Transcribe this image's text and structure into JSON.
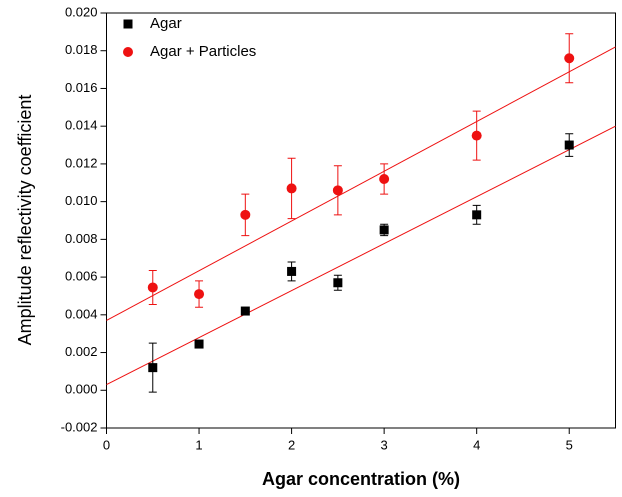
{
  "chart_data": {
    "type": "scatter",
    "x_label": "Agar concentration (%)",
    "y_label": "Amplitude reflectivity coefficient",
    "xlim": [
      0,
      5.5
    ],
    "ylim": [
      -0.002,
      0.02
    ],
    "xticks": [
      0,
      1,
      2,
      3,
      4,
      5
    ],
    "yticks": [
      {
        "value": -0.002,
        "label": "-0.002"
      },
      {
        "value": 0,
        "label": "0.000"
      },
      {
        "value": 0.002,
        "label": "0.002"
      },
      {
        "value": 0.004,
        "label": "0.004"
      },
      {
        "value": 0.006,
        "label": "0.006"
      },
      {
        "value": 0.008,
        "label": "0.008"
      },
      {
        "value": 0.01,
        "label": "0.010"
      },
      {
        "value": 0.012,
        "label": "0.012"
      },
      {
        "value": 0.014,
        "label": "0.014"
      },
      {
        "value": 0.016,
        "label": "0.016"
      },
      {
        "value": 0.018,
        "label": "0.018"
      },
      {
        "value": 0.02,
        "label": "0.020"
      }
    ],
    "legend": "top-left",
    "series": [
      {
        "name": "Agar",
        "color": "#000000",
        "marker": "square",
        "x": [
          0.5,
          1,
          1.5,
          2,
          2.5,
          3,
          4,
          5
        ],
        "values": [
          0.0012,
          0.00245,
          0.0042,
          0.0063,
          0.0057,
          0.0085,
          0.0093,
          0.013
        ],
        "errors": [
          0.0013,
          0.0001,
          0.0001,
          0.0005,
          0.0004,
          0.0003,
          0.0005,
          0.0006
        ],
        "fit_values": [
          0.0003,
          0.014
        ]
      },
      {
        "name": "Agar + Particles",
        "color": "#ee1111",
        "marker": "circle",
        "x": [
          0.5,
          1,
          1.5,
          2,
          2.5,
          3,
          4,
          5
        ],
        "values": [
          0.00545,
          0.0051,
          0.0093,
          0.0107,
          0.0106,
          0.0112,
          0.0135,
          0.0176
        ],
        "errors": [
          0.0009,
          0.0007,
          0.0011,
          0.0016,
          0.0013,
          0.0008,
          0.0013,
          0.0013
        ],
        "fit_values": [
          0.0037,
          0.0182
        ]
      }
    ]
  }
}
